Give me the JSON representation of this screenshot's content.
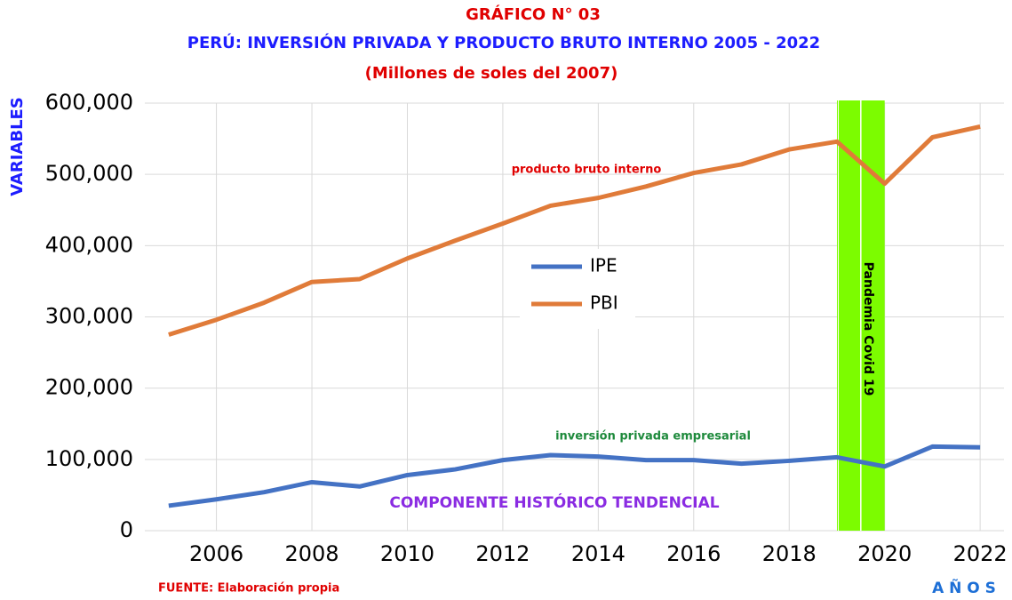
{
  "chart_data": {
    "type": "line",
    "title": "GRÁFICO N° 03",
    "subtitle": "PERÚ: INVERSIÓN PRIVADA Y  PRODUCTO BRUTO INTERNO 2005 - 2022",
    "units_note": "(Millones de soles del 2007)",
    "y_label": "VARIABLES",
    "x_label": "A Ñ O S",
    "source": "FUENTE: Elaboración propia",
    "x": [
      2005,
      2006,
      2007,
      2008,
      2009,
      2010,
      2011,
      2012,
      2013,
      2014,
      2015,
      2016,
      2017,
      2018,
      2019,
      2020,
      2021,
      2022
    ],
    "series": [
      {
        "name": "IPE",
        "color": "#4472c4",
        "values": [
          35000,
          44000,
          54000,
          68000,
          62000,
          78000,
          86000,
          99000,
          106000,
          104000,
          99000,
          99000,
          94000,
          98000,
          103000,
          90000,
          118000,
          117000
        ]
      },
      {
        "name": "PBI",
        "color": "#e07b39",
        "values": [
          275000,
          296000,
          320000,
          349000,
          353000,
          382000,
          407000,
          431000,
          456000,
          467000,
          483000,
          502000,
          514000,
          535000,
          546000,
          487000,
          552000,
          567000
        ]
      }
    ],
    "xlim": [
      2004.5,
      2022.5
    ],
    "xticks": [
      2006,
      2008,
      2010,
      2012,
      2014,
      2016,
      2018,
      2020,
      2022
    ],
    "ylim": [
      0,
      600000
    ],
    "yticks": [
      0,
      {
        "value": 100000,
        "label": "100,000"
      },
      {
        "value": 200000,
        "label": "200,000"
      },
      {
        "value": 300000,
        "label": "300,000"
      },
      {
        "value": 400000,
        "label": "400,000"
      },
      {
        "value": 500000,
        "label": "500,000"
      },
      {
        "value": 600000,
        "label": "600,000"
      }
    ],
    "grid": true,
    "legend": "center",
    "band": {
      "x0": 2019,
      "x1": 2020,
      "label": "Pandemia Covid 19",
      "color": "#7cfc00"
    },
    "annotations": [
      {
        "text": "producto bruto interno",
        "color": "#e00000"
      },
      {
        "text": "inversión privada empresarial",
        "color": "#1e8a3c"
      },
      {
        "text": "COMPONENTE HISTÓRICO TENDENCIAL",
        "color": "#8a2be2"
      }
    ]
  }
}
